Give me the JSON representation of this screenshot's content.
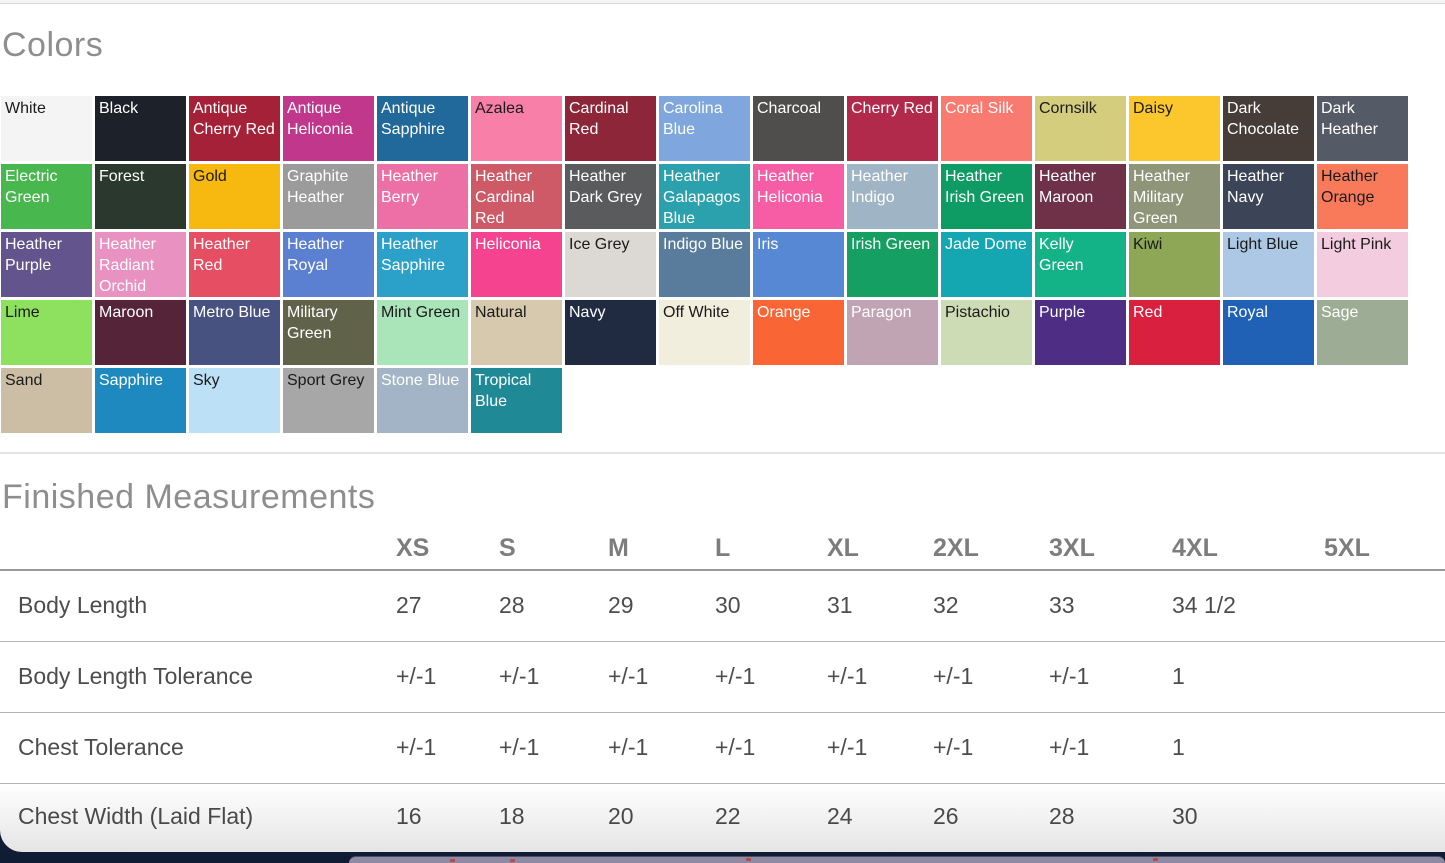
{
  "colors_section": {
    "heading": "Colors",
    "swatches": [
      {
        "name": "White",
        "bg": "#f4f4f5",
        "fg": "#1a1a1a"
      },
      {
        "name": "Black",
        "bg": "#1d212a",
        "fg": "#ffffff"
      },
      {
        "name": "Antique Cherry Red",
        "bg": "#a52138",
        "fg": "#ffffff"
      },
      {
        "name": "Antique Heliconia",
        "bg": "#c0378b",
        "fg": "#ffffff"
      },
      {
        "name": "Antique Sapphire",
        "bg": "#20699a",
        "fg": "#ffffff"
      },
      {
        "name": "Azalea",
        "bg": "#f880a8",
        "fg": "#1a1a1a"
      },
      {
        "name": "Cardinal Red",
        "bg": "#8d2639",
        "fg": "#ffffff"
      },
      {
        "name": "Carolina Blue",
        "bg": "#7fa7dd",
        "fg": "#ffffff"
      },
      {
        "name": "Charcoal",
        "bg": "#504e4c",
        "fg": "#ffffff"
      },
      {
        "name": "Cherry Red",
        "bg": "#b22a4b",
        "fg": "#ffffff"
      },
      {
        "name": "Coral Silk",
        "bg": "#f97a70",
        "fg": "#ffffff"
      },
      {
        "name": "Cornsilk",
        "bg": "#d3cd7d",
        "fg": "#1a1a1a"
      },
      {
        "name": "Daisy",
        "bg": "#fcc72d",
        "fg": "#1a1a1a"
      },
      {
        "name": "Dark Chocolate",
        "bg": "#463d39",
        "fg": "#ffffff"
      },
      {
        "name": "Dark Heather",
        "bg": "#555b66",
        "fg": "#ffffff"
      },
      {
        "name": "Electric Green",
        "bg": "#48b74e",
        "fg": "#ffffff"
      },
      {
        "name": "Forest",
        "bg": "#2a382d",
        "fg": "#ffffff"
      },
      {
        "name": "Gold",
        "bg": "#f7b80f",
        "fg": "#1a1a1a"
      },
      {
        "name": "Graphite Heather",
        "bg": "#9c9b9c",
        "fg": "#ffffff"
      },
      {
        "name": "Heather Berry",
        "bg": "#ec70a6",
        "fg": "#ffffff"
      },
      {
        "name": "Heather Cardinal Red",
        "bg": "#cd5a66",
        "fg": "#ffffff"
      },
      {
        "name": "Heather Dark Grey",
        "bg": "#595b5d",
        "fg": "#ffffff"
      },
      {
        "name": "Heather Galapagos Blue",
        "bg": "#2ba1ad",
        "fg": "#ffffff"
      },
      {
        "name": "Heather Heliconia",
        "bg": "#f75da5",
        "fg": "#ffffff"
      },
      {
        "name": "Heather Indigo",
        "bg": "#9fb4c4",
        "fg": "#ffffff"
      },
      {
        "name": "Heather Irish Green",
        "bg": "#0f9c64",
        "fg": "#ffffff"
      },
      {
        "name": "Heather Maroon",
        "bg": "#6e3147",
        "fg": "#ffffff"
      },
      {
        "name": "Heather Military Green",
        "bg": "#8e9579",
        "fg": "#ffffff"
      },
      {
        "name": "Heather Navy",
        "bg": "#3c4457",
        "fg": "#ffffff"
      },
      {
        "name": "Heather Orange",
        "bg": "#f87a5a",
        "fg": "#1a1a1a"
      },
      {
        "name": "Heather Purple",
        "bg": "#63548e",
        "fg": "#ffffff"
      },
      {
        "name": "Heather Radiant Orchid",
        "bg": "#e992c2",
        "fg": "#ffffff"
      },
      {
        "name": "Heather Red",
        "bg": "#e64e63",
        "fg": "#ffffff"
      },
      {
        "name": "Heather Royal",
        "bg": "#5c80d1",
        "fg": "#ffffff"
      },
      {
        "name": "Heather Sapphire",
        "bg": "#2ba1c9",
        "fg": "#ffffff"
      },
      {
        "name": "Heliconia",
        "bg": "#f6438f",
        "fg": "#ffffff"
      },
      {
        "name": "Ice Grey",
        "bg": "#dcd8d3",
        "fg": "#1a1a1a"
      },
      {
        "name": "Indigo Blue",
        "bg": "#597b9c",
        "fg": "#ffffff"
      },
      {
        "name": "Iris",
        "bg": "#5788d3",
        "fg": "#ffffff"
      },
      {
        "name": "Irish Green",
        "bg": "#159f62",
        "fg": "#ffffff"
      },
      {
        "name": "Jade Dome",
        "bg": "#14a6b1",
        "fg": "#ffffff"
      },
      {
        "name": "Kelly Green",
        "bg": "#14b387",
        "fg": "#ffffff"
      },
      {
        "name": "Kiwi",
        "bg": "#8da756",
        "fg": "#1a1a1a"
      },
      {
        "name": "Light Blue",
        "bg": "#acc8e4",
        "fg": "#1a1a1a"
      },
      {
        "name": "Light Pink",
        "bg": "#f4cce0",
        "fg": "#1a1a1a"
      },
      {
        "name": "Lime",
        "bg": "#8ee05f",
        "fg": "#1a1a1a"
      },
      {
        "name": "Maroon",
        "bg": "#552438",
        "fg": "#ffffff"
      },
      {
        "name": "Metro Blue",
        "bg": "#475280",
        "fg": "#ffffff"
      },
      {
        "name": "Military Green",
        "bg": "#61624a",
        "fg": "#ffffff"
      },
      {
        "name": "Mint Green",
        "bg": "#aae5b9",
        "fg": "#1a1a1a"
      },
      {
        "name": "Natural",
        "bg": "#d7c9ad",
        "fg": "#1a1a1a"
      },
      {
        "name": "Navy",
        "bg": "#202b42",
        "fg": "#ffffff"
      },
      {
        "name": "Off White",
        "bg": "#f2eedd",
        "fg": "#1a1a1a"
      },
      {
        "name": "Orange",
        "bg": "#f96534",
        "fg": "#ffffff"
      },
      {
        "name": "Paragon",
        "bg": "#c0a4b3",
        "fg": "#ffffff"
      },
      {
        "name": "Pistachio",
        "bg": "#cedcb5",
        "fg": "#1a1a1a"
      },
      {
        "name": "Purple",
        "bg": "#4d2e84",
        "fg": "#ffffff"
      },
      {
        "name": "Red",
        "bg": "#d9203e",
        "fg": "#ffffff"
      },
      {
        "name": "Royal",
        "bg": "#2060b5",
        "fg": "#ffffff"
      },
      {
        "name": "Sage",
        "bg": "#9dac94",
        "fg": "#ffffff"
      },
      {
        "name": "Sand",
        "bg": "#cbbea4",
        "fg": "#1a1a1a"
      },
      {
        "name": "Sapphire",
        "bg": "#1d89bf",
        "fg": "#ffffff"
      },
      {
        "name": "Sky",
        "bg": "#bce0f5",
        "fg": "#1a1a1a"
      },
      {
        "name": "Sport Grey",
        "bg": "#a7a7a7",
        "fg": "#1a1a1a"
      },
      {
        "name": "Stone Blue",
        "bg": "#a3b4c7",
        "fg": "#ffffff"
      },
      {
        "name": "Tropical Blue",
        "bg": "#1f8a96",
        "fg": "#ffffff"
      }
    ]
  },
  "measurements_section": {
    "heading": "Finished Measurements",
    "sizes": [
      "XS",
      "S",
      "M",
      "L",
      "XL",
      "2XL",
      "3XL",
      "4XL",
      "5XL"
    ],
    "rows": [
      {
        "label": "Body Length",
        "values": [
          "27",
          "28",
          "29",
          "30",
          "31",
          "32",
          "33",
          "34 1/2",
          ""
        ]
      },
      {
        "label": "Body Length Tolerance",
        "values": [
          "+/-1",
          "+/-1",
          "+/-1",
          "+/-1",
          "+/-1",
          "+/-1",
          "+/-1",
          "1",
          ""
        ]
      },
      {
        "label": "Chest Tolerance",
        "values": [
          "+/-1",
          "+/-1",
          "+/-1",
          "+/-1",
          "+/-1",
          "+/-1",
          "+/-1",
          "1",
          ""
        ]
      },
      {
        "label": "Chest Width (Laid Flat)",
        "values": [
          "16",
          "18",
          "20",
          "22",
          "24",
          "26",
          "28",
          "30",
          ""
        ]
      }
    ]
  }
}
